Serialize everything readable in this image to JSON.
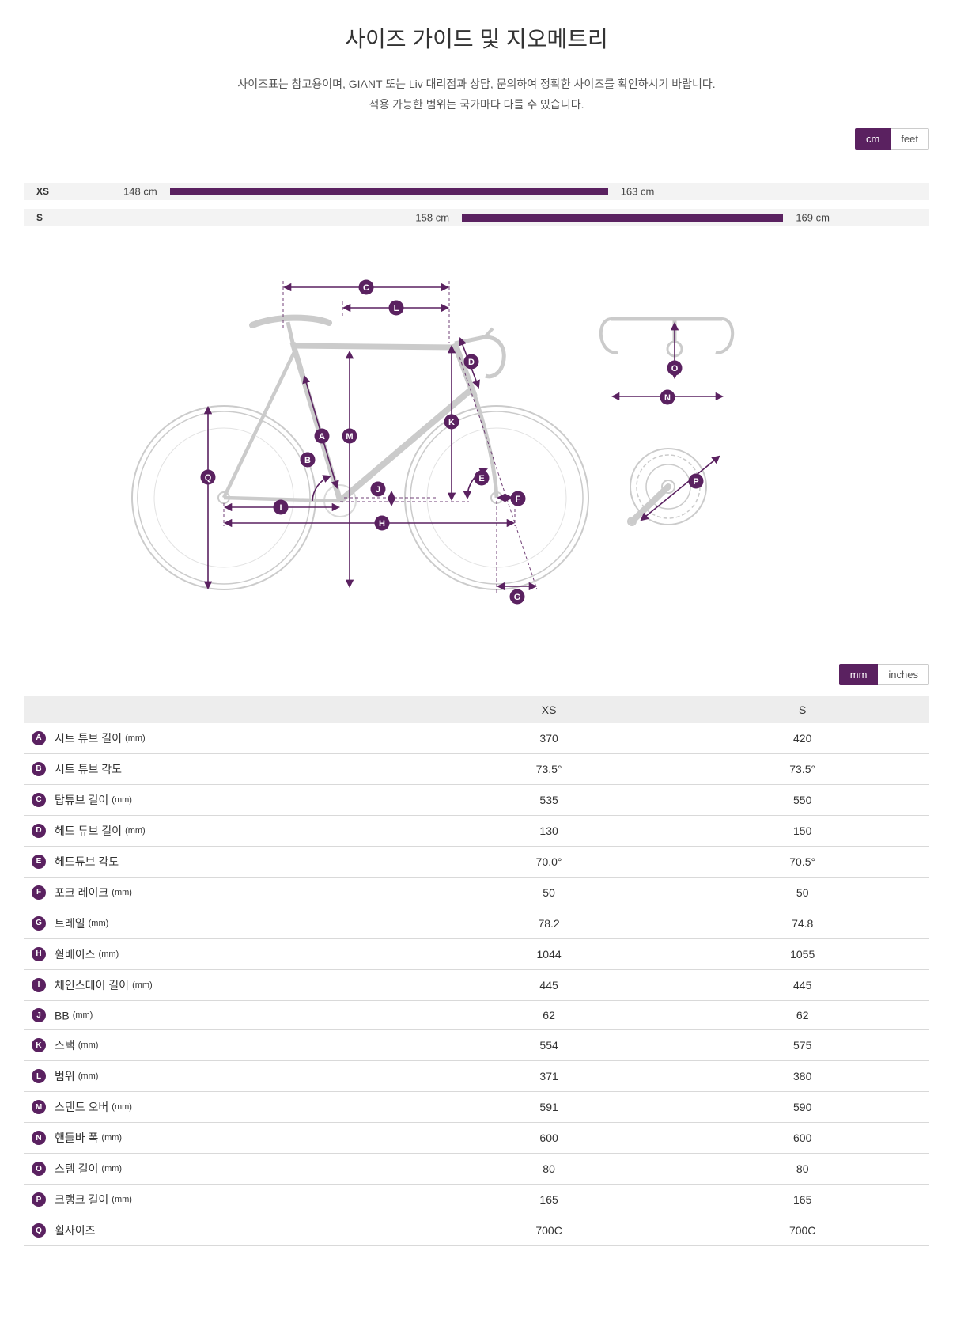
{
  "accent_color": "#5a2160",
  "page": {
    "title": "사이즈 가이드 및 지오메트리",
    "subtitle1": "사이즈표는 참고용이며, GIANT 또는 Liv 대리점과 상담, 문의하여 정확한 사이즈를 확인하시기 바랍니다.",
    "subtitle2": "적용 가능한 범위는 국가마다 다를 수 있습니다."
  },
  "height_toggle": {
    "options": [
      "cm",
      "feet"
    ],
    "active": "cm"
  },
  "unit_toggle": {
    "options": [
      "mm",
      "inches"
    ],
    "active": "mm"
  },
  "size_chart": {
    "unit": "cm",
    "scale": {
      "min": 143,
      "max": 174
    },
    "rows": [
      {
        "size": "XS",
        "from": 148,
        "to": 163,
        "from_label": "148 cm",
        "to_label": "163 cm"
      },
      {
        "size": "S",
        "from": 158,
        "to": 169,
        "from_label": "158 cm",
        "to_label": "169 cm"
      }
    ]
  },
  "diagram": {
    "badges": [
      "A",
      "B",
      "C",
      "D",
      "E",
      "F",
      "G",
      "H",
      "I",
      "J",
      "K",
      "L",
      "M",
      "N",
      "O",
      "P",
      "Q"
    ]
  },
  "geometry_table": {
    "columns": [
      "XS",
      "S"
    ],
    "rows": [
      {
        "key": "A",
        "label": "시트 튜브 길이",
        "unit": "(mm)",
        "values": [
          "370",
          "420"
        ]
      },
      {
        "key": "B",
        "label": "시트 튜브 각도",
        "unit": "",
        "values": [
          "73.5°",
          "73.5°"
        ]
      },
      {
        "key": "C",
        "label": "탑튜브 길이",
        "unit": "(mm)",
        "values": [
          "535",
          "550"
        ]
      },
      {
        "key": "D",
        "label": "헤드 튜브 길이",
        "unit": "(mm)",
        "values": [
          "130",
          "150"
        ]
      },
      {
        "key": "E",
        "label": "헤드튜브 각도",
        "unit": "",
        "values": [
          "70.0°",
          "70.5°"
        ]
      },
      {
        "key": "F",
        "label": "포크 레이크",
        "unit": "(mm)",
        "values": [
          "50",
          "50"
        ]
      },
      {
        "key": "G",
        "label": "트레일",
        "unit": "(mm)",
        "values": [
          "78.2",
          "74.8"
        ]
      },
      {
        "key": "H",
        "label": "휠베이스",
        "unit": "(mm)",
        "values": [
          "1044",
          "1055"
        ]
      },
      {
        "key": "I",
        "label": "체인스테이 길이",
        "unit": "(mm)",
        "values": [
          "445",
          "445"
        ]
      },
      {
        "key": "J",
        "label": "BB",
        "unit": "(mm)",
        "values": [
          "62",
          "62"
        ]
      },
      {
        "key": "K",
        "label": "스택",
        "unit": "(mm)",
        "values": [
          "554",
          "575"
        ]
      },
      {
        "key": "L",
        "label": "범위",
        "unit": "(mm)",
        "values": [
          "371",
          "380"
        ]
      },
      {
        "key": "M",
        "label": "스탠드 오버",
        "unit": "(mm)",
        "values": [
          "591",
          "590"
        ]
      },
      {
        "key": "N",
        "label": "핸들바 폭",
        "unit": "(mm)",
        "values": [
          "600",
          "600"
        ]
      },
      {
        "key": "O",
        "label": "스템 길이",
        "unit": "(mm)",
        "values": [
          "80",
          "80"
        ]
      },
      {
        "key": "P",
        "label": "크랭크 길이",
        "unit": "(mm)",
        "values": [
          "165",
          "165"
        ]
      },
      {
        "key": "Q",
        "label": "휠사이즈",
        "unit": "",
        "values": [
          "700C",
          "700C"
        ]
      }
    ]
  }
}
